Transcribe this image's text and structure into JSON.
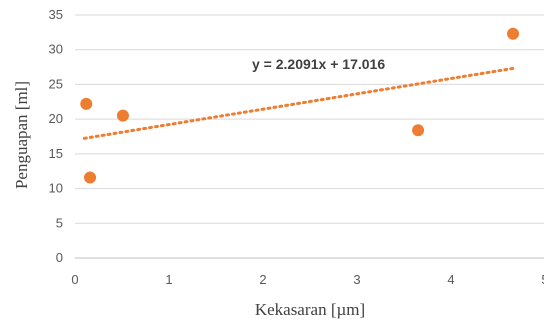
{
  "chart_data": {
    "type": "scatter",
    "title": "",
    "xlabel": "Kekasaran [µm]",
    "ylabel": "Penguapan [ml]",
    "xlim": [
      0,
      5
    ],
    "ylim": [
      0,
      35
    ],
    "x_ticks": [
      "0",
      "1",
      "2",
      "3",
      "4",
      "5"
    ],
    "y_ticks": [
      "0",
      "5",
      "10",
      "15",
      "20",
      "25",
      "30",
      "35"
    ],
    "grid": "horizontal",
    "points": [
      {
        "x": 0.12,
        "y": 22.2
      },
      {
        "x": 0.16,
        "y": 11.6
      },
      {
        "x": 0.51,
        "y": 20.5
      },
      {
        "x": 3.65,
        "y": 18.4
      },
      {
        "x": 4.66,
        "y": 32.3
      }
    ],
    "trendline": {
      "type": "linear",
      "slope": 2.2091,
      "intercept": 17.016,
      "x_range": [
        0.1,
        4.66
      ],
      "style": "dotted",
      "equation_label": "y = 2.2091x + 17.016"
    },
    "colors": {
      "points": "#ED7D31",
      "trendline": "#ED7D31",
      "grid": "#D9D9D9",
      "axis": "#BFBFBF"
    }
  }
}
